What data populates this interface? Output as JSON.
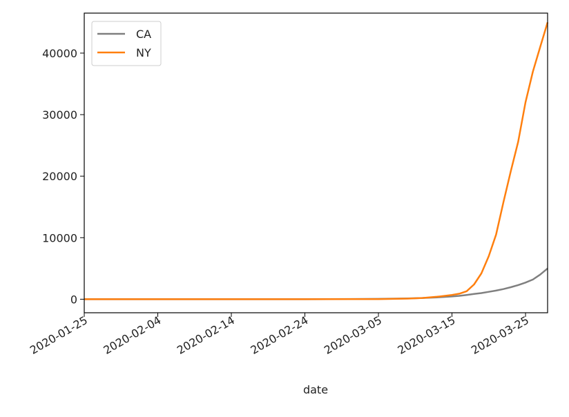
{
  "chart_data": {
    "type": "line",
    "title": "",
    "xlabel": "date",
    "ylabel": "",
    "x_start": "2020-01-25",
    "x_ticks": [
      "2020-01-25",
      "2020-02-04",
      "2020-02-14",
      "2020-02-24",
      "2020-03-05",
      "2020-03-15",
      "2020-03-25"
    ],
    "xlim": [
      "2020-01-25",
      "2020-03-28"
    ],
    "y_ticks": [
      0,
      10000,
      20000,
      30000,
      40000
    ],
    "ylim": [
      -2200,
      46500
    ],
    "grid": false,
    "legend_position": "top-left",
    "x": [
      "2020-01-25",
      "2020-02-04",
      "2020-02-14",
      "2020-02-24",
      "2020-03-05",
      "2020-03-09",
      "2020-03-11",
      "2020-03-13",
      "2020-03-15",
      "2020-03-16",
      "2020-03-17",
      "2020-03-18",
      "2020-03-19",
      "2020-03-20",
      "2020-03-21",
      "2020-03-22",
      "2020-03-23",
      "2020-03-24",
      "2020-03-25",
      "2020-03-26",
      "2020-03-27",
      "2020-03-28"
    ],
    "series": [
      {
        "name": "CA",
        "color": "#7f7f7f",
        "values": [
          0,
          0,
          0,
          0,
          60,
          120,
          200,
          300,
          450,
          550,
          700,
          850,
          1000,
          1200,
          1400,
          1650,
          1950,
          2300,
          2700,
          3200,
          4000,
          5000
        ]
      },
      {
        "name": "NY",
        "color": "#ff7f0e",
        "values": [
          0,
          0,
          0,
          0,
          20,
          100,
          200,
          400,
          700,
          900,
          1300,
          2400,
          4200,
          7000,
          10500,
          15800,
          20800,
          25600,
          32000,
          37000,
          41000,
          45000
        ]
      }
    ]
  }
}
